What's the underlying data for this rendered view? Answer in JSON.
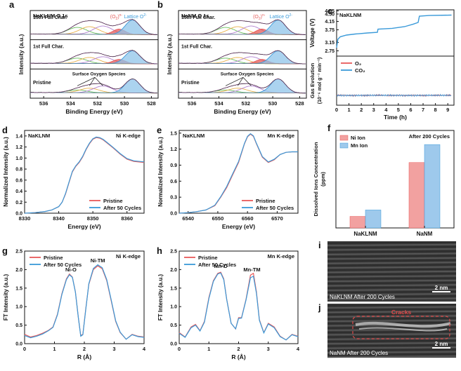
{
  "figure": {
    "colors": {
      "red": "#e85a5a",
      "blue": "#3a9ad9",
      "green": "#6abf5e",
      "purple": "#b07fd0",
      "orange": "#e9b04a",
      "lattice_fill": "#8fc4ea",
      "o2_fill": "#e35b58",
      "envelope": "#d88ad6",
      "bar_red": "#f2a1a0",
      "bar_blue": "#9ec9ec",
      "crack": "#e04a4a"
    }
  },
  "chart_data": [
    {
      "id": "a",
      "letter": "a",
      "type": "line",
      "title": "NaKLNM   O 1s",
      "xlabel": "Binding Energy (eV)",
      "ylabel": "Intensity (a.u.)",
      "xlim": [
        537,
        527.5
      ],
      "reversed_x": true,
      "xticks": [
        536,
        534,
        532,
        530,
        528
      ],
      "panels": [
        "15th Full Char.",
        "1st Full Char.",
        "Pristine"
      ],
      "peaks_eV": {
        "lattice": 529.4,
        "o2_n": 530.4,
        "surface": [
          531.6,
          532.6,
          533.5
        ]
      },
      "annotations": {
        "lattice": "Lattice O",
        "lattice_sup": "2-",
        "o2_n": "(O",
        "o2_n_sub": "2",
        "o2_n_sup": "n-",
        "o2_n_close": ")",
        "surface": "Surface Oxygen Species"
      }
    },
    {
      "id": "b",
      "letter": "b",
      "type": "line",
      "title": "NaNM   O 1s",
      "xlabel": "Binding Energy (eV)",
      "ylabel": "Intensity (a.u.)",
      "xlim": [
        537,
        527.5
      ],
      "reversed_x": true,
      "xticks": [
        536,
        534,
        532,
        530,
        528
      ],
      "panels": [
        "15th Full Char.",
        "1st Full Char.",
        "Pristine"
      ],
      "peaks_eV": {
        "lattice": 529.6,
        "o2_n": 530.8,
        "surface": [
          531.6,
          532.6,
          533.5
        ]
      },
      "annotations": {
        "lattice": "Lattice O",
        "lattice_sup": "2-",
        "o2_n": "(O",
        "o2_n_sub": "2",
        "o2_n_sup": "n-",
        "o2_n_close": ")",
        "surface": "Surface Oxygen Species"
      }
    },
    {
      "id": "c",
      "letter": "c",
      "type": "line",
      "title": "NaKLNM",
      "xlabel": "Time (h)",
      "top": {
        "ylabel": "Voltage (V)",
        "ylim": [
          2.5,
          4.7
        ],
        "yticks": [
          "4.65",
          "4.50",
          "4.15",
          "3.75",
          "3.15",
          "2.75"
        ],
        "voltage": {
          "time_h": [
            0,
            0.1,
            0.3,
            0.8,
            1.5,
            2.5,
            3.3,
            3.35,
            4.5,
            5.5,
            6.2,
            6.6,
            6.7,
            7.5,
            9.3
          ],
          "volts": [
            2.9,
            3.3,
            3.42,
            3.5,
            3.55,
            3.6,
            3.63,
            3.78,
            3.82,
            3.9,
            4.02,
            4.1,
            4.4,
            4.43,
            4.45
          ]
        }
      },
      "bottom": {
        "ylabel": "Gas Evolution",
        "ylabel2": "(10⁻⁶ mol g⁻¹ min⁻¹)",
        "ylim": [
          -0.05,
          0.2
        ],
        "legend": [
          "O₂",
          "CO₂"
        ],
        "series_approx_value": 0.0
      },
      "xlim": [
        0,
        9.5
      ],
      "xticks": [
        0,
        1,
        2,
        3,
        4,
        5,
        6,
        7,
        8,
        9
      ]
    },
    {
      "id": "d",
      "letter": "d",
      "type": "line",
      "title": "NaKLNM",
      "edge": "Ni K-edge",
      "xlabel": "Energy (eV)",
      "ylabel": "Normalized Intensity (a.u.)",
      "xlim": [
        8330,
        8365
      ],
      "ylim": [
        0,
        1.5
      ],
      "xticks": [
        8330,
        8340,
        8350,
        8360
      ],
      "yticks": [
        "0.0",
        "0.2",
        "0.4",
        "0.6",
        "0.8",
        "1.0",
        "1.2",
        "1.4"
      ],
      "series": [
        {
          "name": "Pristine",
          "x": [
            8330,
            8333,
            8336,
            8338,
            8340,
            8341,
            8342,
            8343,
            8344,
            8345,
            8346,
            8347,
            8348,
            8349,
            8350,
            8351,
            8352,
            8353,
            8354,
            8356,
            8358,
            8360,
            8362,
            8365
          ],
          "y": [
            0.0,
            0.01,
            0.03,
            0.06,
            0.12,
            0.2,
            0.35,
            0.55,
            0.75,
            0.85,
            0.92,
            1.02,
            1.15,
            1.26,
            1.34,
            1.37,
            1.36,
            1.33,
            1.28,
            1.18,
            1.07,
            0.98,
            0.94,
            0.92
          ]
        },
        {
          "name": "After 50 Cycles",
          "x": [
            8330,
            8333,
            8336,
            8338,
            8340,
            8341,
            8342,
            8343,
            8344,
            8345,
            8346,
            8347,
            8348,
            8349,
            8350,
            8351,
            8352,
            8353,
            8354,
            8356,
            8358,
            8360,
            8362,
            8365
          ],
          "y": [
            0.0,
            0.01,
            0.03,
            0.06,
            0.12,
            0.2,
            0.36,
            0.56,
            0.76,
            0.86,
            0.93,
            1.03,
            1.16,
            1.27,
            1.35,
            1.38,
            1.37,
            1.34,
            1.29,
            1.19,
            1.08,
            0.99,
            0.95,
            0.93
          ]
        }
      ]
    },
    {
      "id": "e",
      "letter": "e",
      "type": "line",
      "title": "NaKLNM",
      "edge": "Mn K-edge",
      "xlabel": "Energy (eV)",
      "ylabel": "Normalized Intensity (a.u.)",
      "xlim": [
        6537,
        6577
      ],
      "ylim": [
        0,
        1.55
      ],
      "xticks": [
        6540,
        6550,
        6560,
        6570
      ],
      "yticks": [
        "0.0",
        "0.3",
        "0.6",
        "0.9",
        "1.2",
        "1.5"
      ],
      "series": [
        {
          "name": "Pristine",
          "x": [
            6537,
            6540,
            6543,
            6546,
            6549,
            6551,
            6553,
            6555,
            6557,
            6559,
            6560,
            6561,
            6562,
            6563,
            6565,
            6567,
            6569,
            6571,
            6573,
            6575,
            6577
          ],
          "y": [
            0.0,
            0.01,
            0.03,
            0.06,
            0.14,
            0.3,
            0.48,
            0.72,
            0.95,
            1.3,
            1.43,
            1.48,
            1.44,
            1.3,
            1.05,
            0.95,
            1.0,
            1.1,
            1.14,
            1.15,
            1.15
          ]
        },
        {
          "name": "After 50 Cycles",
          "x": [
            6537,
            6540,
            6543,
            6546,
            6549,
            6551,
            6553,
            6555,
            6557,
            6559,
            6560,
            6561,
            6562,
            6563,
            6565,
            6567,
            6569,
            6571,
            6573,
            6575,
            6577
          ],
          "y": [
            0.0,
            0.01,
            0.03,
            0.06,
            0.15,
            0.31,
            0.5,
            0.74,
            0.97,
            1.31,
            1.44,
            1.49,
            1.45,
            1.31,
            1.06,
            0.96,
            1.01,
            1.1,
            1.14,
            1.15,
            1.15
          ]
        }
      ]
    },
    {
      "id": "f",
      "letter": "f",
      "type": "bar",
      "title": "After 200 Cycles",
      "ylabel": "Dissolved Ions Concentration",
      "ylabel2": "(ppm)",
      "categories": [
        "NaKLNM",
        "NaNM"
      ],
      "series": [
        {
          "name": "Ni Ion",
          "values": [
            4.5,
            25.5
          ]
        },
        {
          "name": "Mn Ion",
          "values": [
            7.0,
            32.5
          ]
        }
      ],
      "ylim": [
        0,
        38
      ]
    },
    {
      "id": "g",
      "letter": "g",
      "type": "line",
      "edge": "Ni K-edge",
      "xlabel": "R (Å)",
      "ylabel": "FT Intensity (a.u.)",
      "xlim": [
        0,
        4
      ],
      "ylim": [
        0,
        2.5
      ],
      "xticks": [
        0,
        1,
        2,
        3,
        4
      ],
      "yticks": [
        "0.0",
        "0.5",
        "1.0",
        "1.5",
        "2.0",
        "2.5"
      ],
      "annotations": [
        {
          "text": "Ni-O",
          "x": 1.55,
          "y": 1.95
        },
        {
          "text": "Ni-TM",
          "x": 2.45,
          "y": 2.2
        }
      ],
      "series": [
        {
          "name": "Pristine",
          "x": [
            0,
            0.2,
            0.4,
            0.6,
            0.8,
            0.95,
            1.1,
            1.25,
            1.4,
            1.5,
            1.6,
            1.7,
            1.8,
            1.88,
            1.95,
            2.05,
            2.15,
            2.3,
            2.45,
            2.6,
            2.75,
            2.9,
            3.05,
            3.2,
            3.4,
            3.6,
            3.8,
            4.0
          ],
          "y": [
            0.25,
            0.18,
            0.22,
            0.28,
            0.36,
            0.45,
            0.8,
            1.35,
            1.75,
            1.88,
            1.8,
            1.4,
            0.7,
            0.22,
            0.25,
            0.95,
            1.6,
            2.0,
            2.1,
            2.02,
            1.7,
            1.15,
            0.6,
            0.3,
            0.12,
            0.25,
            0.2,
            0.18
          ]
        },
        {
          "name": "After 50 Cycles",
          "x": [
            0,
            0.2,
            0.4,
            0.6,
            0.8,
            0.95,
            1.1,
            1.25,
            1.4,
            1.5,
            1.6,
            1.7,
            1.8,
            1.88,
            1.95,
            2.05,
            2.15,
            2.3,
            2.45,
            2.6,
            2.75,
            2.9,
            3.05,
            3.2,
            3.4,
            3.6,
            3.8,
            4.0
          ],
          "y": [
            0.22,
            0.16,
            0.2,
            0.26,
            0.35,
            0.44,
            0.78,
            1.33,
            1.73,
            1.86,
            1.79,
            1.39,
            0.7,
            0.2,
            0.24,
            0.93,
            1.62,
            2.03,
            2.13,
            2.05,
            1.73,
            1.18,
            0.62,
            0.31,
            0.12,
            0.24,
            0.19,
            0.17
          ]
        }
      ]
    },
    {
      "id": "h",
      "letter": "h",
      "type": "line",
      "edge": "Mn K-edge",
      "xlabel": "R (Å)",
      "ylabel": "FT Intensity (a.u.)",
      "xlim": [
        0,
        4
      ],
      "ylim": [
        0,
        2.5
      ],
      "xticks": [
        0,
        1,
        2,
        3,
        4
      ],
      "yticks": [
        "0.0",
        "0.5",
        "1.0",
        "1.5",
        "2.0",
        "2.5"
      ],
      "annotations": [
        {
          "text": "Mn-O",
          "x": 1.4,
          "y": 2.05
        },
        {
          "text": "Mn-TM",
          "x": 2.45,
          "y": 1.95
        }
      ],
      "series": [
        {
          "name": "Pristine",
          "x": [
            0,
            0.2,
            0.4,
            0.55,
            0.7,
            0.85,
            1.0,
            1.15,
            1.3,
            1.4,
            1.5,
            1.6,
            1.75,
            1.9,
            2.0,
            2.1,
            2.25,
            2.4,
            2.5,
            2.6,
            2.7,
            2.85,
            3.0,
            3.2,
            3.4,
            3.6,
            3.8,
            4.0
          ],
          "y": [
            0.3,
            0.18,
            0.45,
            0.52,
            0.35,
            0.6,
            1.25,
            1.7,
            1.9,
            1.93,
            1.75,
            1.2,
            0.55,
            0.4,
            0.7,
            0.7,
            1.2,
            1.85,
            1.9,
            1.4,
            0.65,
            0.3,
            0.55,
            0.45,
            0.2,
            0.1,
            0.25,
            0.2
          ]
        },
        {
          "name": "After 50 Cycles",
          "x": [
            0,
            0.2,
            0.4,
            0.55,
            0.7,
            0.85,
            1.0,
            1.15,
            1.3,
            1.4,
            1.5,
            1.6,
            1.75,
            1.9,
            2.0,
            2.1,
            2.25,
            2.4,
            2.5,
            2.6,
            2.7,
            2.85,
            3.0,
            3.2,
            3.4,
            3.6,
            3.8,
            4.0
          ],
          "y": [
            0.28,
            0.17,
            0.43,
            0.5,
            0.34,
            0.58,
            1.22,
            1.68,
            1.88,
            1.91,
            1.73,
            1.19,
            0.55,
            0.4,
            0.68,
            0.69,
            1.18,
            1.78,
            1.82,
            1.36,
            0.63,
            0.29,
            0.53,
            0.43,
            0.19,
            0.1,
            0.24,
            0.19
          ]
        }
      ]
    }
  ],
  "tem": [
    {
      "letter": "i",
      "caption": "NaKLNM  After 200 Cycles",
      "scalebar": "2 nm"
    },
    {
      "letter": "j",
      "caption": "NaNM  After 200 Cycles",
      "scalebar": "2 nm",
      "annotation": "Cracks"
    }
  ]
}
